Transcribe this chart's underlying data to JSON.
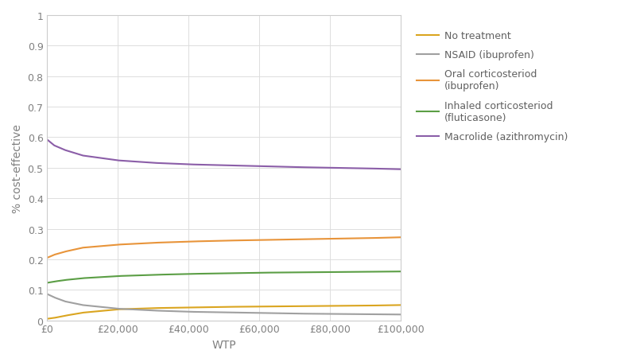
{
  "title": "",
  "xlabel": "WTP",
  "ylabel": "% cost-effective",
  "xlim": [
    0,
    100000
  ],
  "ylim": [
    0,
    1.0
  ],
  "yticks": [
    0,
    0.1,
    0.2,
    0.3,
    0.4,
    0.5,
    0.6,
    0.7,
    0.8,
    0.9,
    1.0
  ],
  "ytick_labels": [
    "0",
    "0.1",
    "0.2",
    "0.3",
    "0.4",
    "0.5",
    "0.6",
    "0.7",
    "0.8",
    "0.9",
    "1"
  ],
  "xticks": [
    0,
    20000,
    40000,
    60000,
    80000,
    100000
  ],
  "xtick_labels": [
    "£0",
    "£20,000",
    "£40,000",
    "£60,000",
    "£80,000",
    "£100,000"
  ],
  "series": [
    {
      "label": "No treatment",
      "color": "#DAA520",
      "x": [
        0,
        2000,
        5000,
        10000,
        20000,
        30000,
        40000,
        50000,
        60000,
        70000,
        80000,
        90000,
        100000
      ],
      "y": [
        0.005,
        0.008,
        0.015,
        0.025,
        0.036,
        0.04,
        0.042,
        0.044,
        0.045,
        0.046,
        0.047,
        0.048,
        0.05
      ]
    },
    {
      "label": "NSAID (ibuprofen)",
      "color": "#A0A0A0",
      "x": [
        0,
        2000,
        5000,
        10000,
        20000,
        30000,
        40000,
        50000,
        60000,
        70000,
        80000,
        90000,
        100000
      ],
      "y": [
        0.086,
        0.075,
        0.062,
        0.05,
        0.038,
        0.032,
        0.028,
        0.026,
        0.024,
        0.022,
        0.021,
        0.02,
        0.019
      ]
    },
    {
      "label": "Oral corticosteriod\n(ibuprofen)",
      "color": "#E8943A",
      "x": [
        0,
        2000,
        5000,
        10000,
        20000,
        30000,
        40000,
        50000,
        60000,
        70000,
        80000,
        90000,
        100000
      ],
      "y": [
        0.205,
        0.215,
        0.225,
        0.238,
        0.248,
        0.254,
        0.258,
        0.261,
        0.263,
        0.265,
        0.267,
        0.269,
        0.272
      ]
    },
    {
      "label": "Inhaled corticosteriod\n(fluticasone)",
      "color": "#5B9E45",
      "x": [
        0,
        2000,
        5000,
        10000,
        20000,
        30000,
        40000,
        50000,
        60000,
        70000,
        80000,
        90000,
        100000
      ],
      "y": [
        0.123,
        0.127,
        0.132,
        0.138,
        0.145,
        0.149,
        0.152,
        0.154,
        0.156,
        0.157,
        0.158,
        0.159,
        0.16
      ]
    },
    {
      "label": "Macrolide (azithromycin)",
      "color": "#8B5EA8",
      "x": [
        0,
        2000,
        5000,
        10000,
        20000,
        30000,
        40000,
        50000,
        60000,
        70000,
        80000,
        90000,
        100000
      ],
      "y": [
        0.592,
        0.573,
        0.558,
        0.54,
        0.524,
        0.516,
        0.511,
        0.508,
        0.505,
        0.502,
        0.5,
        0.498,
        0.495
      ]
    }
  ],
  "tick_color": "#808080",
  "label_color": "#808080",
  "spine_color": "#cccccc",
  "grid_color": "#dddddd",
  "background_color": "#ffffff",
  "legend_text_color": "#606060",
  "figsize": [
    8.0,
    4.56
  ],
  "dpi": 100
}
